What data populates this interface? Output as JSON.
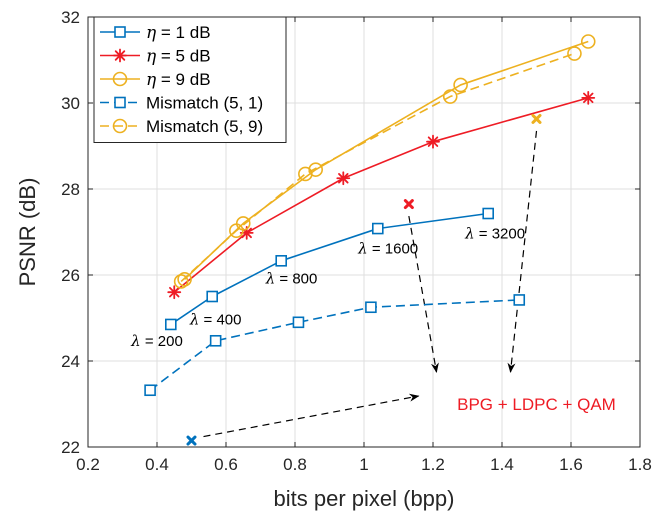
{
  "chart_data": {
    "type": "line",
    "title": "",
    "xlabel": "bits per pixel (bpp)",
    "ylabel": "PSNR (dB)",
    "xlim": [
      0.2,
      1.8
    ],
    "ylim": [
      22,
      32
    ],
    "xticks": [
      0.2,
      0.4,
      0.6,
      0.8,
      1,
      1.2,
      1.4,
      1.6,
      1.8
    ],
    "yticks": [
      22,
      24,
      26,
      28,
      30,
      32
    ],
    "xtick_labels": [
      "0.2",
      "0.4",
      "0.6",
      "0.8",
      "1",
      "1.2",
      "1.4",
      "1.6",
      "1.8"
    ],
    "ytick_labels": [
      "22",
      "24",
      "26",
      "28",
      "30",
      "32"
    ],
    "grid": true,
    "legend_position": "top-left",
    "series": [
      {
        "name": "η = 1 dB",
        "legend_prefix": "η",
        "legend_suffix": " = 1 dB",
        "color": "#0072BD",
        "dash": "solid",
        "marker": "square",
        "x": [
          0.44,
          0.56,
          0.76,
          1.04,
          1.36
        ],
        "y": [
          24.85,
          25.5,
          26.33,
          27.08,
          27.43
        ]
      },
      {
        "name": "η = 5 dB",
        "legend_prefix": "η",
        "legend_suffix": " = 5 dB",
        "color": "#EE1C25",
        "dash": "solid",
        "marker": "asterisk",
        "x": [
          0.45,
          0.66,
          0.94,
          1.2,
          1.65
        ],
        "y": [
          25.6,
          26.98,
          28.25,
          29.1,
          30.12
        ]
      },
      {
        "name": "η = 9 dB",
        "legend_prefix": "η",
        "legend_suffix": " = 9 dB",
        "color": "#EDB120",
        "dash": "solid",
        "marker": "circle",
        "x": [
          0.48,
          0.65,
          0.86,
          1.28,
          1.65
        ],
        "y": [
          25.9,
          27.2,
          28.45,
          30.42,
          31.43
        ]
      },
      {
        "name": "Mismatch (5, 1)",
        "legend_prefix": "",
        "legend_suffix": "Mismatch (5, 1)",
        "color": "#0072BD",
        "dash": "dashed",
        "marker": "square",
        "x": [
          0.38,
          0.57,
          0.81,
          1.02,
          1.45
        ],
        "y": [
          23.32,
          24.47,
          24.9,
          25.25,
          25.42
        ]
      },
      {
        "name": "Mismatch (5, 9)",
        "legend_prefix": "",
        "legend_suffix": "Mismatch (5, 9)",
        "color": "#EDB120",
        "dash": "dashed",
        "marker": "circle",
        "x": [
          0.47,
          0.63,
          0.83,
          1.25,
          1.61
        ],
        "y": [
          25.85,
          27.03,
          28.35,
          30.15,
          31.15
        ]
      }
    ],
    "bpg_points": [
      {
        "x": 0.5,
        "y": 22.15,
        "color": "#0072BD"
      },
      {
        "x": 1.13,
        "y": 27.65,
        "color": "#EE1C25"
      },
      {
        "x": 1.5,
        "y": 29.63,
        "color": "#EDB120"
      }
    ],
    "lambda_labels": [
      {
        "symbol": "λ",
        "text": " = 200",
        "x": 0.4,
        "y": 24.35
      },
      {
        "symbol": "λ",
        "text": " = 400",
        "x": 0.57,
        "y": 24.85
      },
      {
        "symbol": "λ",
        "text": " = 800",
        "x": 0.79,
        "y": 25.8
      },
      {
        "symbol": "λ",
        "text": " = 1600",
        "x": 1.07,
        "y": 26.5
      },
      {
        "symbol": "λ",
        "text": " = 3200",
        "x": 1.38,
        "y": 26.85
      }
    ],
    "annotation": {
      "text": "BPG + LDPC + QAM",
      "color": "#EE1C25",
      "x": 1.5,
      "y": 23
    }
  },
  "colors": {
    "axis": "#262626",
    "grid": "#dfdfdf",
    "arrow": "#000000"
  }
}
